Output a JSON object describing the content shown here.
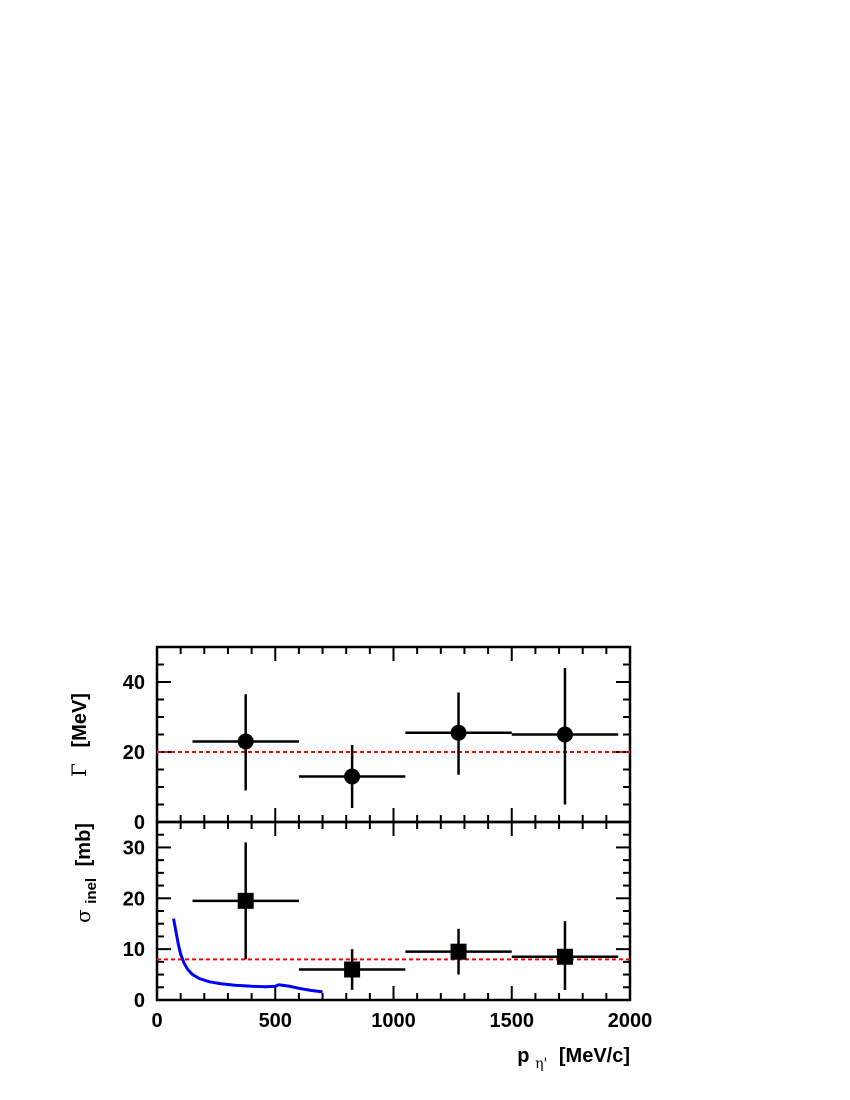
{
  "chart_data": [
    {
      "type": "scatter",
      "panel": "top",
      "ylabel_symbol": "Γ",
      "ylabel_unit": "[MeV]",
      "ylim": [
        0,
        50
      ],
      "xlim": [
        0,
        2000
      ],
      "yticks": [
        "0",
        "20",
        "40"
      ],
      "points": [
        {
          "x": 375,
          "y": 23,
          "xerr": 225,
          "yerr_low": 14,
          "yerr_high": 13.5
        },
        {
          "x": 825,
          "y": 13,
          "xerr": 225,
          "yerr_low": 9,
          "yerr_high": 9
        },
        {
          "x": 1275,
          "y": 25.5,
          "xerr": 225,
          "yerr_low": 12,
          "yerr_high": 11.5
        },
        {
          "x": 1725,
          "y": 25,
          "xerr": 225,
          "yerr_low": 20,
          "yerr_high": 19
        }
      ],
      "reference_line": {
        "y": 20,
        "color": "#ff0000",
        "style": "dashed"
      },
      "marker": "circle",
      "grid": false
    },
    {
      "type": "scatter",
      "panel": "bottom",
      "ylabel_symbol": "σ",
      "ylabel_sub": "inel",
      "ylabel_unit": "[mb]",
      "ylim": [
        0,
        35
      ],
      "xlim": [
        0,
        2000
      ],
      "yticks": [
        "0",
        "10",
        "20",
        "30"
      ],
      "xticks": [
        "0",
        "500",
        "1000",
        "1500",
        "2000"
      ],
      "xlabel_main": "p",
      "xlabel_sub": "η'",
      "xlabel_unit": "[MeV/c]",
      "points": [
        {
          "x": 375,
          "y": 19.5,
          "xerr": 225,
          "yerr_low": 11.5,
          "yerr_high": 11.5
        },
        {
          "x": 825,
          "y": 6,
          "xerr": 225,
          "yerr_low": 4,
          "yerr_high": 4
        },
        {
          "x": 1275,
          "y": 9.5,
          "xerr": 225,
          "yerr_low": 4.5,
          "yerr_high": 4.5
        },
        {
          "x": 1725,
          "y": 8.5,
          "xerr": 225,
          "yerr_low": 6.5,
          "yerr_high": 7
        }
      ],
      "reference_line": {
        "y": 8,
        "color": "#ff0000",
        "style": "dashed"
      },
      "curve": {
        "color": "#0000ff",
        "x": [
          70,
          80,
          90,
          100,
          115,
          130,
          150,
          180,
          220,
          270,
          330,
          400,
          460,
          500,
          515,
          530,
          560,
          600,
          650,
          700
        ],
        "y": [
          16,
          13.5,
          11,
          9,
          7.2,
          6.0,
          5.0,
          4.2,
          3.6,
          3.2,
          2.9,
          2.7,
          2.6,
          2.7,
          3.0,
          2.9,
          2.7,
          2.3,
          1.9,
          1.6
        ]
      },
      "marker": "square",
      "grid": false
    }
  ]
}
